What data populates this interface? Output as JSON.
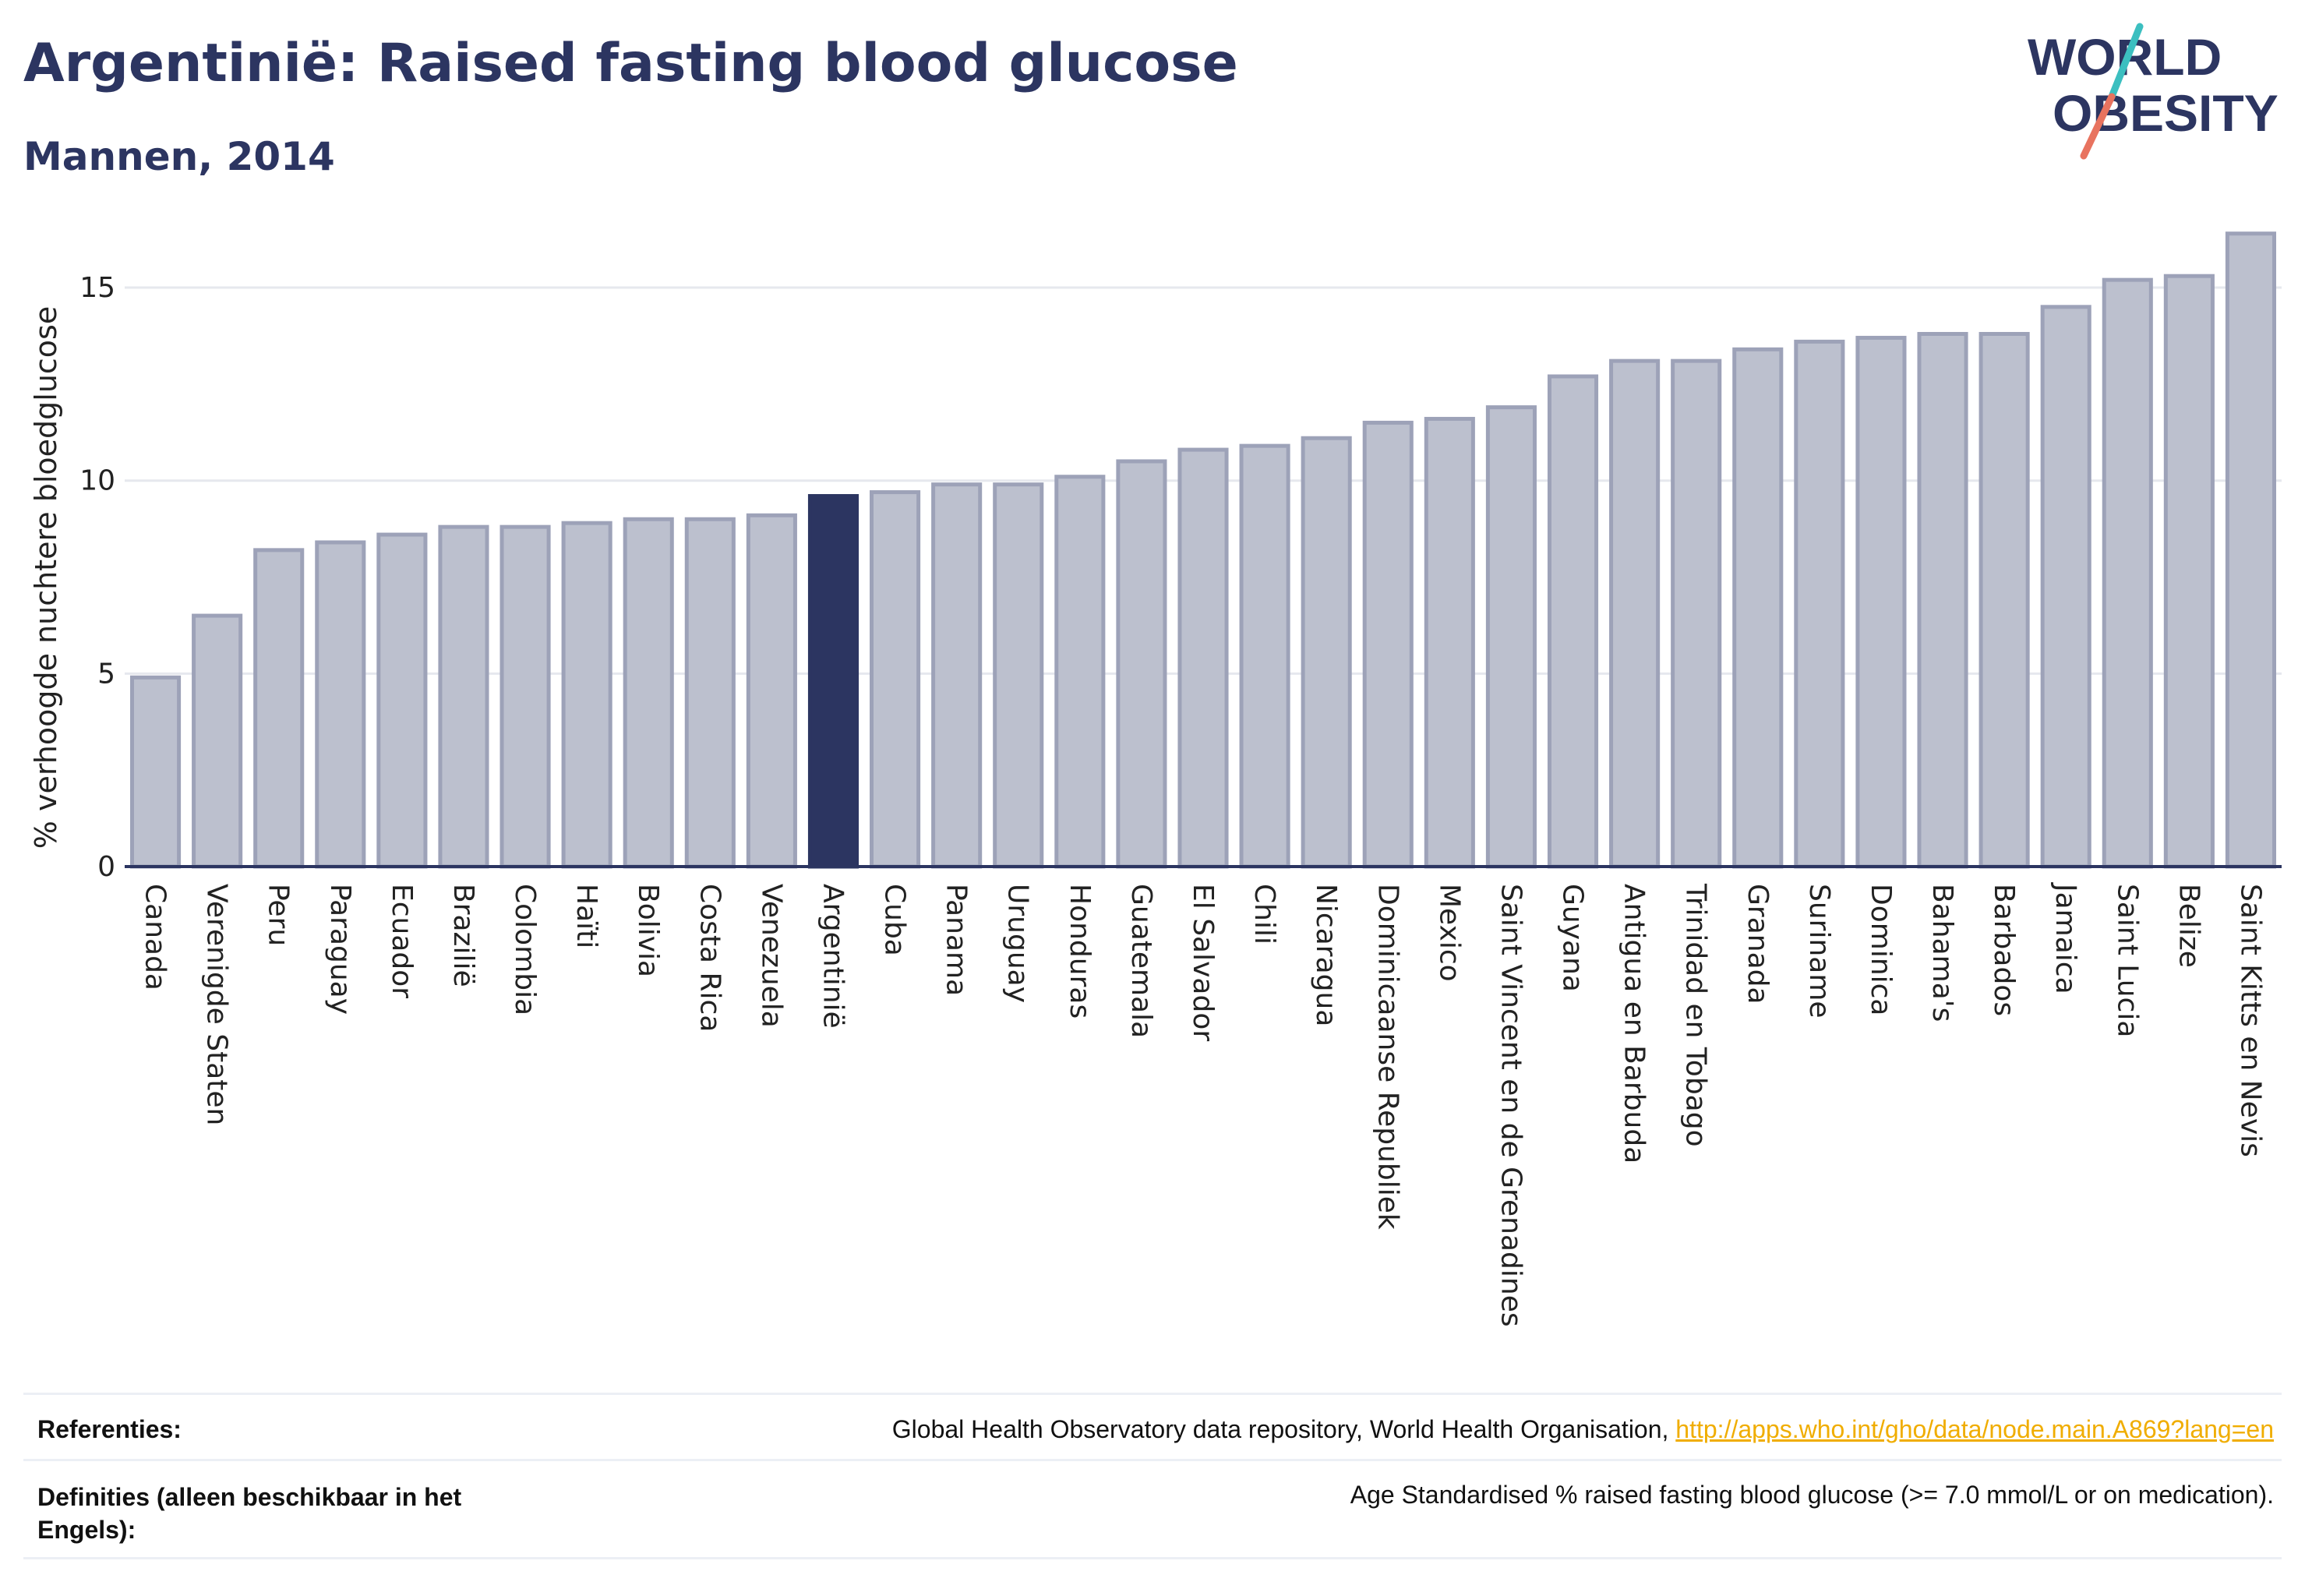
{
  "header": {
    "title": "Argentinië: Raised fasting blood glucose",
    "subtitle": "Mannen, 2014"
  },
  "logo": {
    "line1": "WORLD",
    "line2": "OBESITY",
    "accent_teal": "#3cbfc0",
    "accent_coral": "#e8735f"
  },
  "colors": {
    "bar": "#bcc0ce",
    "bar_stroke": "#9da2b8",
    "highlight": "#2c3561",
    "text": "#2c3561"
  },
  "chart_data": {
    "type": "bar",
    "ylabel": "% verhoogde nuchtere bloedglucose",
    "ylim": [
      0,
      17
    ],
    "yticks": [
      0,
      5,
      10,
      15
    ],
    "grid": true,
    "highlight": "Argentinië",
    "categories": [
      "Canada",
      "Verenigde Staten",
      "Peru",
      "Paraguay",
      "Ecuador",
      "Brazilië",
      "Colombia",
      "Haïti",
      "Bolivia",
      "Costa Rica",
      "Venezuela",
      "Argentinië",
      "Cuba",
      "Panama",
      "Uruguay",
      "Honduras",
      "Guatemala",
      "El Salvador",
      "Chili",
      "Nicaragua",
      "Dominicaanse Republiek",
      "Mexico",
      "Saint Vincent en de Grenadines",
      "Guyana",
      "Antigua en Barbuda",
      "Trinidad en Tobago",
      "Granada",
      "Suriname",
      "Dominica",
      "Bahama's",
      "Barbados",
      "Jamaica",
      "Saint Lucia",
      "Belize",
      "Saint Kitts en Nevis"
    ],
    "values": [
      4.9,
      6.5,
      8.2,
      8.4,
      8.6,
      8.8,
      8.8,
      8.9,
      9.0,
      9.0,
      9.1,
      9.6,
      9.7,
      9.9,
      9.9,
      10.1,
      10.5,
      10.8,
      10.9,
      11.1,
      11.5,
      11.6,
      11.9,
      12.7,
      13.1,
      13.1,
      13.4,
      13.6,
      13.7,
      13.8,
      13.8,
      14.5,
      15.2,
      15.3,
      16.4
    ]
  },
  "footer": {
    "references_label": "Referenties:",
    "references_text": "Global Health Observatory data repository, World Health Organisation, ",
    "references_link": "http://apps.who.int/gho/data/node.main.A869?lang=en",
    "definitions_label": "Definities (alleen beschikbaar in het Engels):",
    "definitions_text": "Age Standardised % raised fasting blood glucose (>= 7.0 mmol/L or on medication)."
  }
}
